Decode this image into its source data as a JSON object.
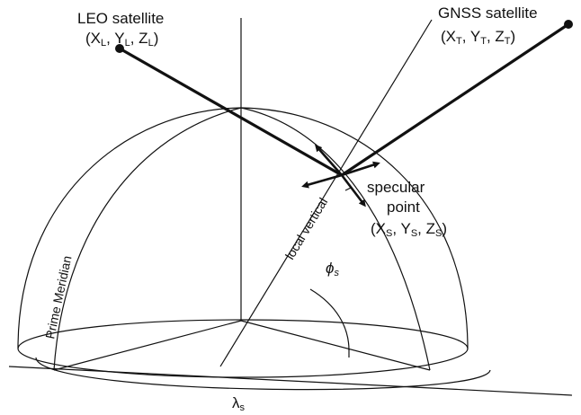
{
  "leo": {
    "name": "LEO satellite",
    "coords": [
      "(X",
      "L",
      ", Y",
      "L",
      ", Z",
      "L",
      ")"
    ]
  },
  "gnss": {
    "name": "GNSS satellite",
    "coords": [
      "(X",
      "T",
      ", Y",
      "T",
      ", Z",
      "T",
      ")"
    ]
  },
  "specular": {
    "name": [
      "specular",
      "point"
    ],
    "coords": [
      "(X",
      "S",
      ", Y",
      "S",
      ", Z",
      "S",
      ")"
    ]
  },
  "local_vertical": "local vertical",
  "prime_meridian": "Prime Meridian",
  "phi": [
    "ϕ",
    "s"
  ],
  "lambda": [
    "λ",
    "s"
  ]
}
